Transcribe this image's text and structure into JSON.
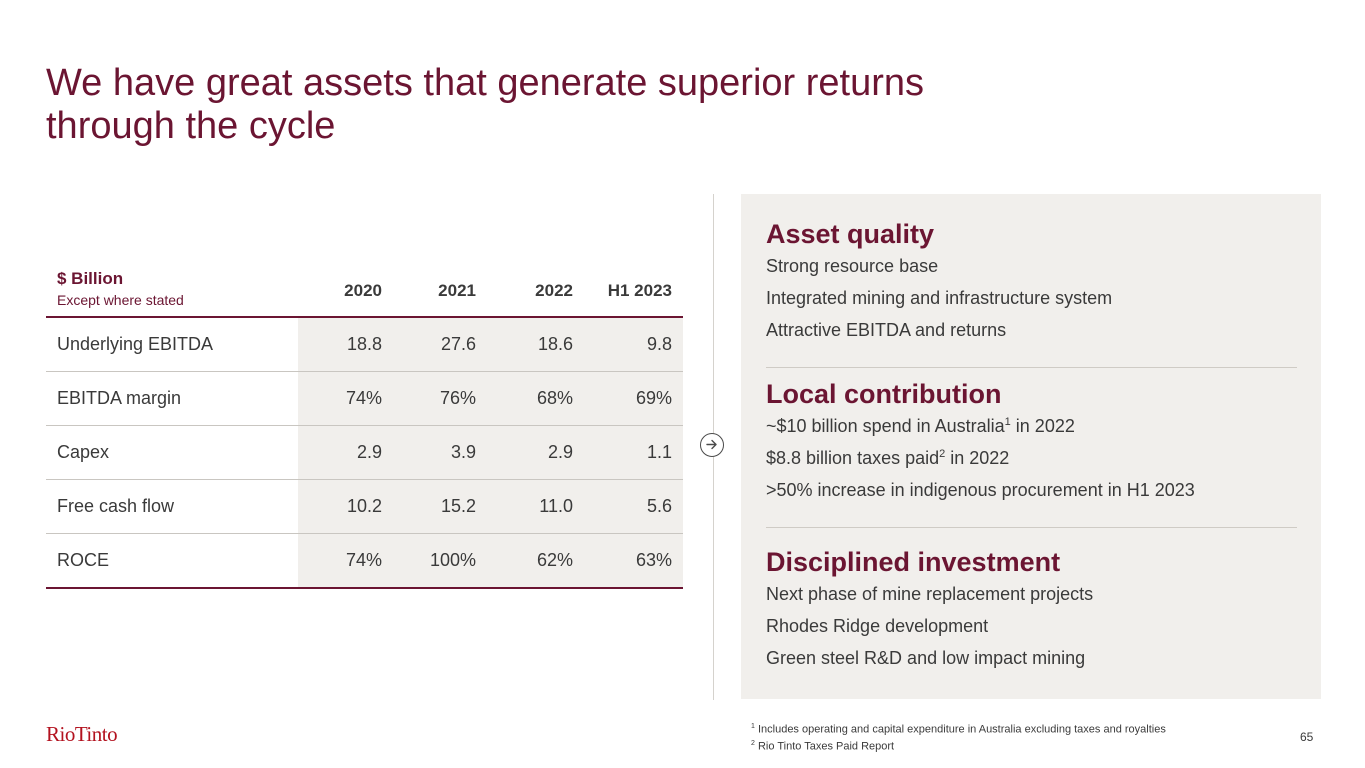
{
  "title": {
    "line1": "We have great assets that generate superior returns",
    "line2": "through the cycle"
  },
  "table": {
    "unit": "$ Billion",
    "unit_note": "Except where stated",
    "columns": [
      "2020",
      "2021",
      "2022",
      "H1 2023"
    ],
    "rows": [
      {
        "label": "Underlying EBITDA",
        "values": [
          "18.8",
          "27.6",
          "18.6",
          "9.8"
        ]
      },
      {
        "label": "EBITDA margin",
        "values": [
          "74%",
          "76%",
          "68%",
          "69%"
        ]
      },
      {
        "label": "Capex",
        "values": [
          "2.9",
          "3.9",
          "2.9",
          "1.1"
        ]
      },
      {
        "label": "Free cash flow",
        "values": [
          "10.2",
          "15.2",
          "11.0",
          "5.6"
        ]
      },
      {
        "label": "ROCE",
        "values": [
          "74%",
          "100%",
          "62%",
          "63%"
        ]
      }
    ]
  },
  "panel": {
    "asset_quality": {
      "title": "Asset quality",
      "items": [
        "Strong resource base",
        "Integrated mining and infrastructure system",
        "Attractive EBITDA and returns"
      ]
    },
    "local_contribution": {
      "title": "Local contribution",
      "item1_pre": "~$10 billion spend in Australia",
      "item1_sup": "1",
      "item1_post": " in 2022",
      "item2_pre": "$8.8 billion taxes paid",
      "item2_sup": "2",
      "item2_post": " in 2022",
      "item3": ">50% increase in indigenous procurement in H1 2023"
    },
    "disciplined_investment": {
      "title": "Disciplined investment",
      "items": [
        "Next phase of mine replacement projects",
        "Rhodes Ridge development",
        "Green steel R&D and low impact mining"
      ]
    }
  },
  "footnotes": {
    "n1_mark": "1",
    "n1": " Includes operating and capital expenditure in Australia excluding taxes and royalties",
    "n2_mark": "2",
    "n2": " Rio Tinto Taxes Paid Report"
  },
  "logo": "RioTinto",
  "page_number": "65",
  "icons": {
    "arrow": "arrow-right-icon"
  },
  "colors": {
    "brand": "#6b1532",
    "logo": "#b3121f",
    "panel": "#f1efec"
  }
}
